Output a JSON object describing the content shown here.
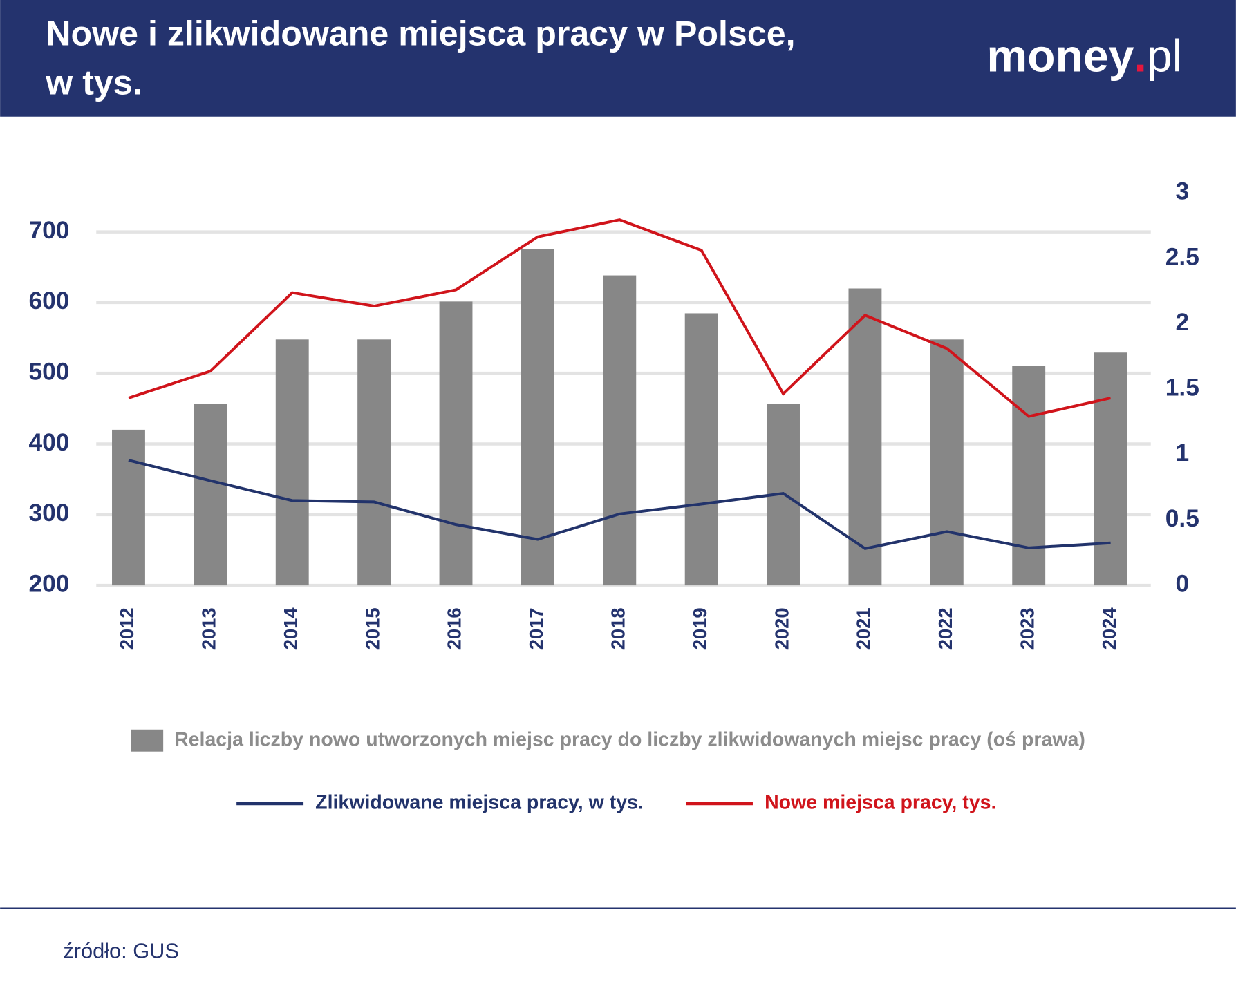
{
  "header": {
    "title_lines": [
      "Nowe i zlikwidowane miejsca pracy w Polsce,",
      "w tys."
    ],
    "logo": {
      "main": "money",
      "dot": ".",
      "suffix": "pl"
    }
  },
  "chart_data": {
    "type": "bar-line",
    "categories": [
      "2012",
      "2013",
      "2014",
      "2015",
      "2016",
      "2017",
      "2018",
      "2019",
      "2020",
      "2021",
      "2022",
      "2023",
      "2024"
    ],
    "series": [
      {
        "name": "Relacja liczby nowo utworzonych miejsc pracy do liczby zlikwidowanych miejsc pracy (oś prawa)",
        "type": "bar",
        "axis": "y2",
        "color": "#878787",
        "values": [
          1.19,
          1.39,
          1.88,
          1.88,
          2.17,
          2.57,
          2.37,
          2.08,
          1.39,
          2.27,
          1.88,
          1.68,
          1.78
        ]
      },
      {
        "name": "Zlikwidowane miejsca pracy, w tys.",
        "type": "line",
        "color": "#22336b",
        "values": [
          377,
          348,
          320,
          318,
          286,
          265,
          301,
          315,
          330,
          252,
          276,
          253,
          260
        ]
      },
      {
        "name": "Nowe miejsca pracy, tys.",
        "type": "line",
        "color": "#d0141b",
        "values": [
          465,
          503,
          614,
          595,
          618,
          693,
          717,
          674,
          471,
          582,
          535,
          439,
          465
        ]
      }
    ],
    "ylim": [
      200,
      755
    ],
    "yticks": [
      200,
      300,
      400,
      500,
      600,
      700
    ],
    "y2lim": [
      0,
      3
    ],
    "y2ticks": [
      0,
      0.5,
      1,
      1.5,
      2,
      2.5,
      3
    ],
    "grid": true
  },
  "source": "źródło: GUS"
}
